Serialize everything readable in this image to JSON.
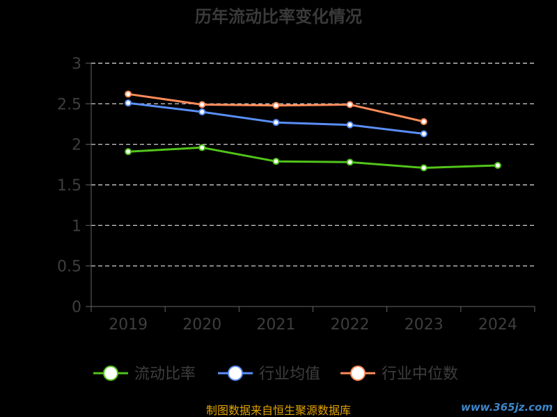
{
  "chart_data": {
    "type": "line",
    "title": "历年流动比率变化情况",
    "categories": [
      "2019",
      "2020",
      "2021",
      "2022",
      "2023",
      "2024"
    ],
    "ylim": [
      0,
      3
    ],
    "yticks": [
      "0",
      "0.5",
      "1",
      "1.5",
      "2",
      "2.5",
      "3"
    ],
    "grid": true,
    "legend_position": "bottom",
    "series": [
      {
        "name": "流动比率",
        "color": "#52c41a",
        "values": [
          1.91,
          1.96,
          1.79,
          1.78,
          1.71,
          1.74
        ]
      },
      {
        "name": "行业均值",
        "color": "#5b8ff9",
        "values": [
          2.51,
          2.4,
          2.27,
          2.24,
          2.13,
          null
        ]
      },
      {
        "name": "行业中位数",
        "color": "#ff8c5a",
        "values": [
          2.62,
          2.49,
          2.48,
          2.49,
          2.28,
          null
        ]
      }
    ]
  },
  "footer": {
    "source": "制图数据来自恒生聚源数据库",
    "watermark": "www.365jz.com"
  }
}
